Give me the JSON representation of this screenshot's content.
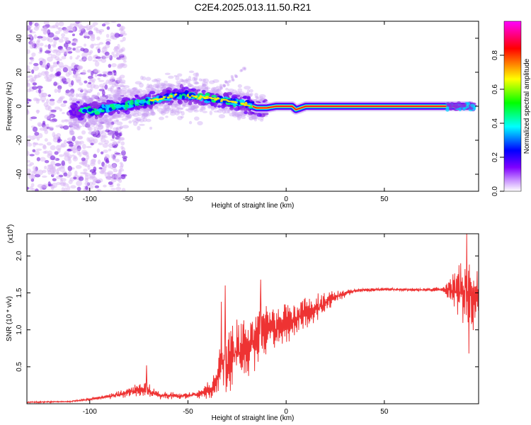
{
  "title": "C2E4.2025.013.11.50.R21",
  "chart_data": [
    {
      "type": "heatmap",
      "title": "C2E4.2025.013.11.50.R21",
      "xlabel": "Height of straight line (km)",
      "ylabel": "Frequency (Hz)",
      "xlim": [
        -132,
        98
      ],
      "ylim": [
        -50,
        50
      ],
      "xticks": [
        -100,
        -50,
        0,
        50
      ],
      "yticks": [
        -40,
        -20,
        0,
        20,
        40
      ],
      "ridge": [
        {
          "x": -105,
          "y": -3
        },
        {
          "x": -95,
          "y": -2
        },
        {
          "x": -85,
          "y": 0
        },
        {
          "x": -75,
          "y": 2
        },
        {
          "x": -65,
          "y": 4
        },
        {
          "x": -55,
          "y": 7
        },
        {
          "x": -48,
          "y": 6
        },
        {
          "x": -40,
          "y": 5
        },
        {
          "x": -30,
          "y": 3
        },
        {
          "x": -22,
          "y": 2
        },
        {
          "x": -15,
          "y": -1
        },
        {
          "x": -10,
          "y": -1
        },
        {
          "x": -5,
          "y": 0
        },
        {
          "x": 3,
          "y": 0
        },
        {
          "x": 5,
          "y": -2
        },
        {
          "x": 10,
          "y": 0
        },
        {
          "x": 20,
          "y": 0
        },
        {
          "x": 40,
          "y": 0
        },
        {
          "x": 60,
          "y": 0
        },
        {
          "x": 80,
          "y": 0
        },
        {
          "x": 95,
          "y": 0
        }
      ],
      "colorbar": {
        "label": "Normalized spectral amplitude",
        "range": [
          0,
          1
        ],
        "ticks": [
          0.0,
          0.2,
          0.4,
          0.6,
          0.8
        ],
        "tick_labels": [
          "0.0",
          "0.2",
          "0.4",
          "0.6",
          "0.8"
        ],
        "colors": [
          "#ffffff",
          "#8000ff",
          "#0000ff",
          "#00ffff",
          "#00ff00",
          "#ffff00",
          "#ff0000",
          "#ff00ff"
        ]
      }
    },
    {
      "type": "line",
      "xlabel": "Height of straight line (km)",
      "ylabel": "SNR (10 * v/v)",
      "scale_label": "(x10",
      "scale_exp": "4",
      "xlim": [
        -132,
        98
      ],
      "ylim": [
        0,
        2.3
      ],
      "xticks": [
        -100,
        -50,
        0,
        50
      ],
      "yticks": [
        0.5,
        1.0,
        1.5,
        2.0
      ],
      "ytick_labels": [
        "0.5",
        "1.0",
        "1.5",
        "2.0"
      ],
      "color": "#ee3333",
      "envelope": [
        {
          "x": -132,
          "y": 0.02,
          "amp": 0.01
        },
        {
          "x": -110,
          "y": 0.03,
          "amp": 0.01
        },
        {
          "x": -100,
          "y": 0.06,
          "amp": 0.02
        },
        {
          "x": -90,
          "y": 0.1,
          "amp": 0.04
        },
        {
          "x": -80,
          "y": 0.15,
          "amp": 0.07
        },
        {
          "x": -72,
          "y": 0.2,
          "amp": 0.12
        },
        {
          "x": -65,
          "y": 0.12,
          "amp": 0.06
        },
        {
          "x": -55,
          "y": 0.1,
          "amp": 0.05
        },
        {
          "x": -45,
          "y": 0.12,
          "amp": 0.05
        },
        {
          "x": -38,
          "y": 0.2,
          "amp": 0.15
        },
        {
          "x": -33,
          "y": 0.5,
          "amp": 0.4
        },
        {
          "x": -28,
          "y": 0.65,
          "amp": 0.45
        },
        {
          "x": -20,
          "y": 0.8,
          "amp": 0.45
        },
        {
          "x": -12,
          "y": 0.95,
          "amp": 0.4
        },
        {
          "x": -5,
          "y": 1.05,
          "amp": 0.35
        },
        {
          "x": 5,
          "y": 1.15,
          "amp": 0.25
        },
        {
          "x": 15,
          "y": 1.3,
          "amp": 0.2
        },
        {
          "x": 25,
          "y": 1.45,
          "amp": 0.08
        },
        {
          "x": 35,
          "y": 1.53,
          "amp": 0.03
        },
        {
          "x": 50,
          "y": 1.55,
          "amp": 0.02
        },
        {
          "x": 70,
          "y": 1.54,
          "amp": 0.02
        },
        {
          "x": 80,
          "y": 1.55,
          "amp": 0.04
        },
        {
          "x": 85,
          "y": 1.55,
          "amp": 0.25
        },
        {
          "x": 90,
          "y": 1.5,
          "amp": 0.5
        },
        {
          "x": 98,
          "y": 1.45,
          "amp": 0.45
        }
      ],
      "spikes": [
        {
          "x": -71,
          "y": 0.52
        },
        {
          "x": -33,
          "y": 1.38
        },
        {
          "x": -31,
          "y": 1.6
        },
        {
          "x": -13,
          "y": 1.68
        },
        {
          "x": 92,
          "y": 2.3
        },
        {
          "x": 93,
          "y": 0.68
        }
      ]
    }
  ]
}
